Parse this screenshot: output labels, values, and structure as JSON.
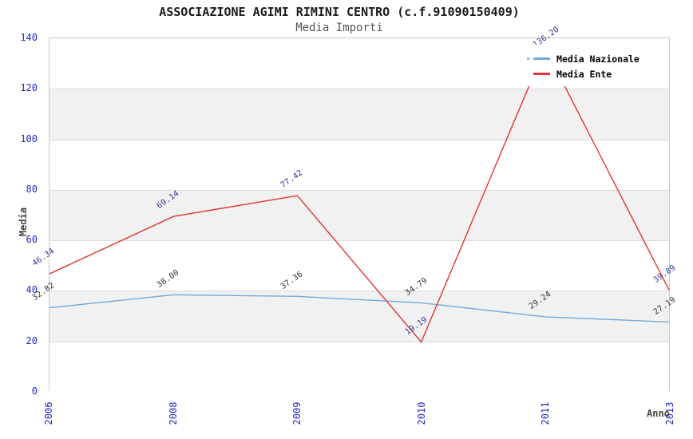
{
  "header": {
    "title": "ASSOCIAZIONE AGIMI RIMINI CENTRO (c.f.91090150409)",
    "subtitle": "Media Importi"
  },
  "axes": {
    "y_title": "Media",
    "x_title": "Anno",
    "y_ticks": [
      "0",
      "20",
      "40",
      "60",
      "80",
      "100",
      "120",
      "140"
    ],
    "x_ticks": [
      "2006",
      "2008",
      "2009",
      "2010",
      "2011",
      "2013"
    ]
  },
  "legend": {
    "items": [
      {
        "label": "Media Nazionale",
        "color": "#74a9d8",
        "marker": "dash-dot"
      },
      {
        "label": "Media Ente",
        "color": "#e23333",
        "marker": "dash"
      }
    ]
  },
  "colors": {
    "band": "#f1f1f1",
    "gridline": "#dcdcdc",
    "plot_border": "#c9c9c9",
    "tick_label": "#2428cc",
    "national_line": "#74a9d8",
    "ente_line": "#e23333",
    "national_value_label": "#333333",
    "ente_value_label": "#333399"
  },
  "chart_data": {
    "type": "line",
    "title": "ASSOCIAZIONE AGIMI RIMINI CENTRO (c.f.91090150409)",
    "subtitle": "Media Importi",
    "xlabel": "Anno",
    "ylabel": "Media",
    "categories": [
      "2006",
      "2008",
      "2009",
      "2010",
      "2011",
      "2013"
    ],
    "ylim": [
      0,
      140
    ],
    "grid": "horizontal-bands-every-20",
    "legend_position": "top-right",
    "series": [
      {
        "name": "Media Nazionale",
        "color": "#74a9d8",
        "values": [
          32.82,
          38.0,
          37.36,
          34.79,
          29.24,
          27.19
        ],
        "labels": [
          "32.82",
          "38.00",
          "37.36",
          "34.79",
          "29.24",
          "27.19"
        ],
        "label_color": "#333333"
      },
      {
        "name": "Media Ente",
        "color": "#e23333",
        "values": [
          46.34,
          69.14,
          77.42,
          19.19,
          136.2,
          39.89
        ],
        "labels": [
          "46.34",
          "69.14",
          "77.42",
          "19.19",
          "136.20",
          "39.89"
        ],
        "label_color": "#333399"
      }
    ]
  }
}
